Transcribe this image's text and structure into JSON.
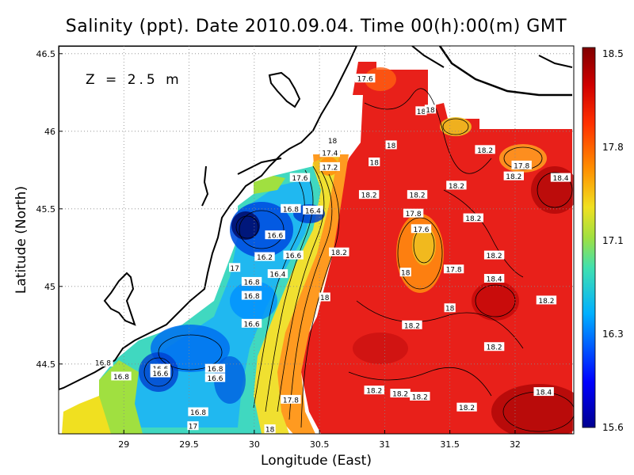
{
  "title": "Salinity (ppt). Date 2010.09.04. Time 00(h):00(m) GMT",
  "annotation": "Z = 2.5 m",
  "xlabel": "Longitude (East)",
  "ylabel": "Latitude (North)",
  "chart_data": {
    "type": "heatmap",
    "title": "Salinity (ppt). Date 2010.09.04. Time 00(h):00(m) GMT",
    "xlabel": "Longitude (East)",
    "ylabel": "Latitude (North)",
    "xlim": [
      28.5,
      32.45
    ],
    "ylim": [
      44.05,
      46.55
    ],
    "x_ticks": [
      "29",
      "29.5",
      "30",
      "30.5",
      "31",
      "31.5",
      "32"
    ],
    "x_tick_values": [
      29,
      29.5,
      30,
      30.5,
      31,
      31.5,
      32
    ],
    "y_ticks": [
      "44.5",
      "45",
      "45.5",
      "46",
      "46.5"
    ],
    "y_tick_values": [
      44.5,
      45,
      45.5,
      46,
      46.5
    ],
    "grid": true,
    "colorbar": {
      "ticks": [
        "15.6",
        "16.3",
        "17.1",
        "17.8",
        "18.5"
      ],
      "values": [
        15.6,
        16.3,
        17.1,
        17.8,
        18.5
      ],
      "colors": [
        "#00008f",
        "#0000ff",
        "#00b0ff",
        "#40e0b0",
        "#a0e040",
        "#f0e020",
        "#ff9000",
        "#ff3000",
        "#d00000",
        "#800000"
      ]
    },
    "contour_labels": [
      {
        "text": "17.6",
        "lon": 30.85,
        "lat": 46.34
      },
      {
        "text": "18",
        "lon": 31.28,
        "lat": 46.13
      },
      {
        "text": "18",
        "lon": 31.35,
        "lat": 46.14
      },
      {
        "text": "18",
        "lon": 30.6,
        "lat": 45.94
      },
      {
        "text": "18",
        "lon": 31.05,
        "lat": 45.91
      },
      {
        "text": "17.4",
        "lon": 30.58,
        "lat": 45.86
      },
      {
        "text": "18",
        "lon": 30.92,
        "lat": 45.8
      },
      {
        "text": "17.2",
        "lon": 30.58,
        "lat": 45.77
      },
      {
        "text": "18.2",
        "lon": 31.77,
        "lat": 45.88
      },
      {
        "text": "17.8",
        "lon": 32.05,
        "lat": 45.78
      },
      {
        "text": "18.2",
        "lon": 31.99,
        "lat": 45.71
      },
      {
        "text": "18.4",
        "lon": 32.35,
        "lat": 45.7
      },
      {
        "text": "17.6",
        "lon": 30.35,
        "lat": 45.7
      },
      {
        "text": "18.2",
        "lon": 31.55,
        "lat": 45.65
      },
      {
        "text": "18.2",
        "lon": 30.88,
        "lat": 45.59
      },
      {
        "text": "18.2",
        "lon": 31.25,
        "lat": 45.59
      },
      {
        "text": "16.8",
        "lon": 30.28,
        "lat": 45.5
      },
      {
        "text": "16.4",
        "lon": 30.45,
        "lat": 45.49
      },
      {
        "text": "17.8",
        "lon": 31.22,
        "lat": 45.47
      },
      {
        "text": "18.2",
        "lon": 31.68,
        "lat": 45.44
      },
      {
        "text": "17.6",
        "lon": 31.28,
        "lat": 45.37
      },
      {
        "text": "16.6",
        "lon": 30.16,
        "lat": 45.33
      },
      {
        "text": "18.2",
        "lon": 30.65,
        "lat": 45.22
      },
      {
        "text": "16.2",
        "lon": 30.08,
        "lat": 45.19
      },
      {
        "text": "16.6",
        "lon": 30.3,
        "lat": 45.2
      },
      {
        "text": "18.2",
        "lon": 31.84,
        "lat": 45.2
      },
      {
        "text": "17",
        "lon": 29.85,
        "lat": 45.12
      },
      {
        "text": "17.8",
        "lon": 31.53,
        "lat": 45.11
      },
      {
        "text": "18",
        "lon": 31.16,
        "lat": 45.09
      },
      {
        "text": "16.4",
        "lon": 30.18,
        "lat": 45.08
      },
      {
        "text": "18.4",
        "lon": 31.84,
        "lat": 45.05
      },
      {
        "text": "16.8",
        "lon": 29.98,
        "lat": 45.03
      },
      {
        "text": "16.8",
        "lon": 29.98,
        "lat": 44.94
      },
      {
        "text": "18",
        "lon": 30.54,
        "lat": 44.93
      },
      {
        "text": "18.2",
        "lon": 32.24,
        "lat": 44.91
      },
      {
        "text": "18",
        "lon": 31.5,
        "lat": 44.86
      },
      {
        "text": "16.6",
        "lon": 29.98,
        "lat": 44.76
      },
      {
        "text": "18.2",
        "lon": 31.21,
        "lat": 44.75
      },
      {
        "text": "18.2",
        "lon": 31.84,
        "lat": 44.61
      },
      {
        "text": "16.8",
        "lon": 28.84,
        "lat": 44.51
      },
      {
        "text": "16.6",
        "lon": 29.28,
        "lat": 44.47
      },
      {
        "text": "16.8",
        "lon": 29.7,
        "lat": 44.47
      },
      {
        "text": "16.8",
        "lon": 28.98,
        "lat": 44.42
      },
      {
        "text": "16.6",
        "lon": 29.28,
        "lat": 44.44
      },
      {
        "text": "16.6",
        "lon": 29.7,
        "lat": 44.41
      },
      {
        "text": "18.2",
        "lon": 30.92,
        "lat": 44.33
      },
      {
        "text": "18.2",
        "lon": 31.12,
        "lat": 44.31
      },
      {
        "text": "18.2",
        "lon": 31.27,
        "lat": 44.29
      },
      {
        "text": "18.4",
        "lon": 32.22,
        "lat": 44.32
      },
      {
        "text": "17.8",
        "lon": 30.28,
        "lat": 44.27
      },
      {
        "text": "18.2",
        "lon": 31.63,
        "lat": 44.22
      },
      {
        "text": "16.8",
        "lon": 29.57,
        "lat": 44.19
      },
      {
        "text": "17",
        "lon": 29.53,
        "lat": 44.1
      },
      {
        "text": "18",
        "lon": 30.12,
        "lat": 44.08
      }
    ]
  }
}
